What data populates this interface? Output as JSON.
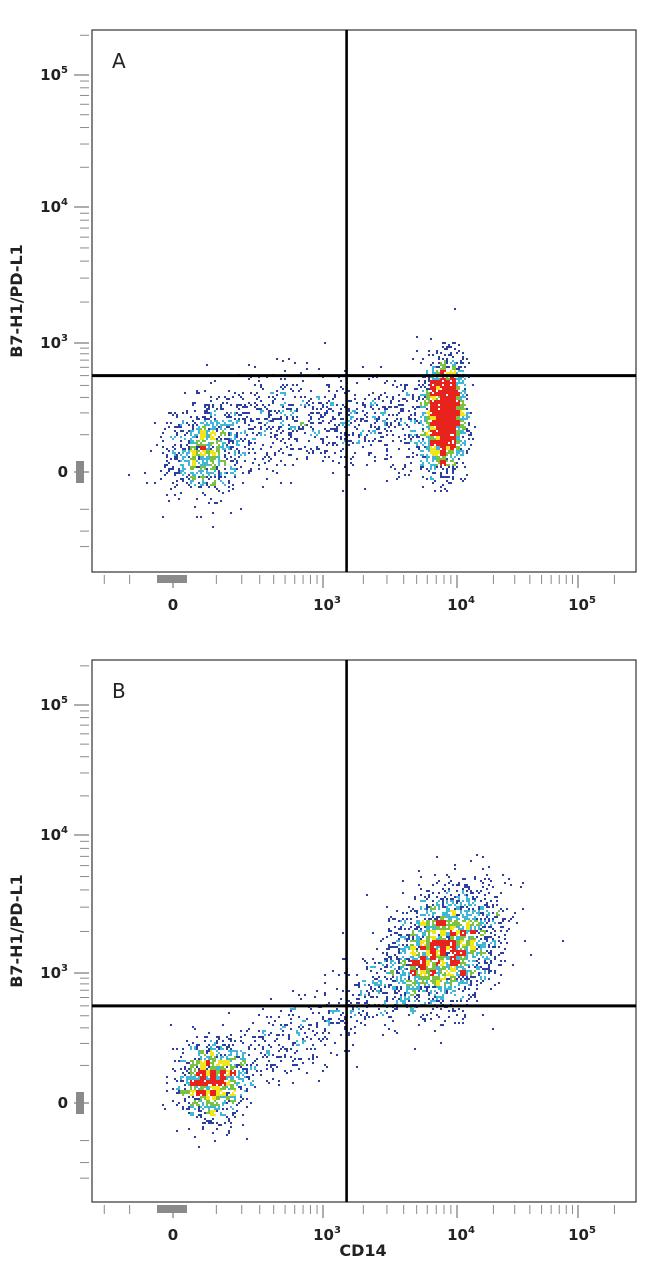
{
  "chart_data": [
    {
      "type": "scatter",
      "subtype": "flow-cytometry-density-dot-plot",
      "panel_label": "A",
      "xlabel": "",
      "ylabel": "B7-H1/PD-L1",
      "x_scale": "biexponential",
      "y_scale": "biexponential",
      "x_ticks": [
        {
          "value": 0,
          "label": "0"
        },
        {
          "value": 1000,
          "label": "10",
          "exp": "3"
        },
        {
          "value": 10000,
          "label": "10",
          "exp": "4"
        },
        {
          "value": 100000,
          "label": "10",
          "exp": "5"
        }
      ],
      "y_ticks": [
        {
          "value": 0,
          "label": "0"
        },
        {
          "value": 1000,
          "label": "10",
          "exp": "3"
        },
        {
          "value": 10000,
          "label": "10",
          "exp": "4"
        },
        {
          "value": 100000,
          "label": "10",
          "exp": "5"
        }
      ],
      "quadrant_gate": {
        "x": 1500,
        "y": 500
      },
      "populations": [
        {
          "x": 60,
          "y": 40
        },
        {
          "x": 600,
          "y": 120
        },
        {
          "x": 8000,
          "y": 200
        }
      ],
      "color_scale": [
        "#2c3e9e",
        "#3fb8d8",
        "#7cc242",
        "#f2e51c",
        "#e8221c"
      ]
    },
    {
      "type": "scatter",
      "subtype": "flow-cytometry-density-dot-plot",
      "panel_label": "B",
      "xlabel": "CD14",
      "ylabel": "B7-H1/PD-L1",
      "x_scale": "biexponential",
      "y_scale": "biexponential",
      "x_ticks": [
        {
          "value": 0,
          "label": "0"
        },
        {
          "value": 1000,
          "label": "10",
          "exp": "3"
        },
        {
          "value": 10000,
          "label": "10",
          "exp": "4"
        },
        {
          "value": 100000,
          "label": "10",
          "exp": "5"
        }
      ],
      "y_ticks": [
        {
          "value": 0,
          "label": "0"
        },
        {
          "value": 1000,
          "label": "10",
          "exp": "3"
        },
        {
          "value": 10000,
          "label": "10",
          "exp": "4"
        },
        {
          "value": 100000,
          "label": "10",
          "exp": "5"
        }
      ],
      "quadrant_gate": {
        "x": 1500,
        "y": 500
      },
      "populations": [
        {
          "x": 80,
          "y": 50
        },
        {
          "x": 1000,
          "y": 500
        },
        {
          "x": 8000,
          "y": 1500
        }
      ],
      "color_scale": [
        "#2c3e9e",
        "#3fb8d8",
        "#7cc242",
        "#f2e51c",
        "#e8221c"
      ]
    }
  ]
}
